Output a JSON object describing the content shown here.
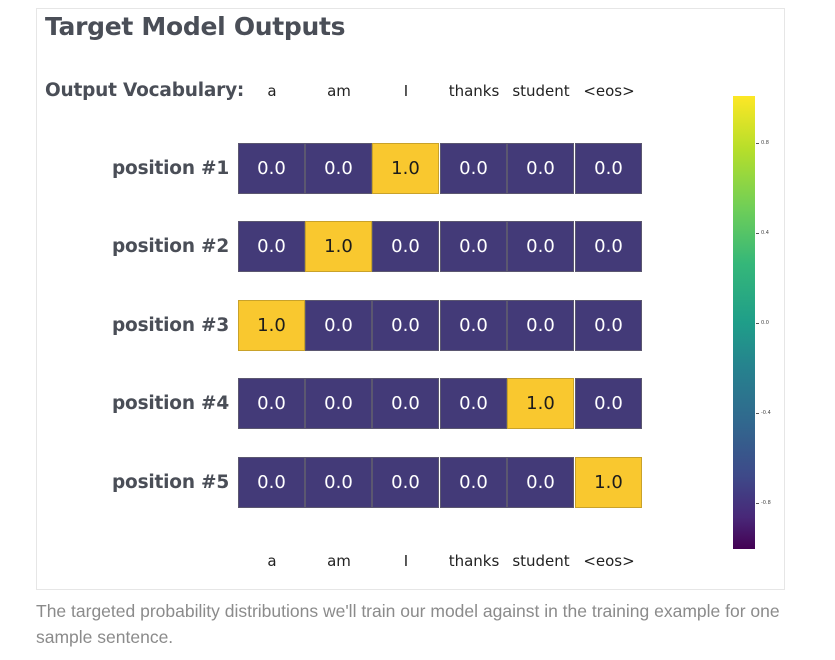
{
  "title": "Target Model Outputs",
  "vocab_label": "Output Vocabulary:",
  "vocabulary": [
    "a",
    "am",
    "I",
    "thanks",
    "student",
    "<eos>"
  ],
  "rows": [
    {
      "label": "position #1",
      "values": [
        "0.0",
        "0.0",
        "1.0",
        "0.0",
        "0.0",
        "0.0"
      ]
    },
    {
      "label": "position #2",
      "values": [
        "0.0",
        "1.0",
        "0.0",
        "0.0",
        "0.0",
        "0.0"
      ]
    },
    {
      "label": "position #3",
      "values": [
        "1.0",
        "0.0",
        "0.0",
        "0.0",
        "0.0",
        "0.0"
      ]
    },
    {
      "label": "position #4",
      "values": [
        "0.0",
        "0.0",
        "0.0",
        "0.0",
        "1.0",
        "0.0"
      ]
    },
    {
      "label": "position #5",
      "values": [
        "0.0",
        "0.0",
        "0.0",
        "0.0",
        "0.0",
        "1.0"
      ]
    }
  ],
  "colorbar": {
    "colormap": "viridis",
    "tick_labels": [
      "0.8",
      "0.4",
      "0.0",
      "-0.4",
      "-0.8"
    ]
  },
  "colors": {
    "low_cell": "#433a78",
    "high_cell": "#f9c82f"
  },
  "caption": "The targeted probability distributions we'll train our model against in the training example for one sample sentence."
}
